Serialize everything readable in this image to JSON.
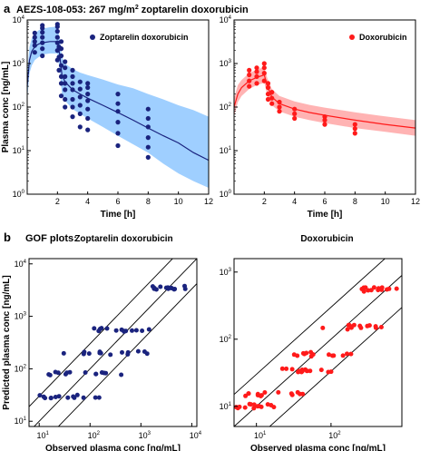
{
  "figure": {
    "panel_a_letter": "a",
    "panel_a_title": "AEZS-108-053: 267 mg/m",
    "panel_a_title_sup": "2",
    "panel_a_title_rest": " zoptarelin doxorubicin",
    "panel_b_letter": "b",
    "panel_b_label": "GOF plots:",
    "colors": {
      "zoptarelin": "#1a237e",
      "zoptarelin_band": "#7fbfff",
      "doxorubicin": "#ff1a1a",
      "doxorubicin_band": "#ff9a9a"
    }
  },
  "chart_data": [
    {
      "id": "pk-zoptarelin",
      "type": "scatter",
      "legend": "Zoptarelin doxorubicin",
      "xlabel": "Time [h]",
      "ylabel": "Plasma conc [ng/mL]",
      "xlim": [
        0,
        12
      ],
      "ylim_log10": [
        0,
        4
      ],
      "xticks": [
        2,
        4,
        6,
        8,
        10,
        12
      ],
      "yticks_exp": [
        0,
        1,
        2,
        3,
        4
      ],
      "curve": {
        "x": [
          0,
          0.15,
          0.3,
          0.5,
          0.75,
          1,
          1.5,
          2,
          2.15,
          2.3,
          2.5,
          3,
          3.5,
          4,
          5,
          6,
          7,
          8,
          9,
          10,
          11,
          12
        ],
        "median": [
          300,
          1200,
          1900,
          2400,
          2800,
          3000,
          3200,
          3200,
          1600,
          550,
          380,
          250,
          200,
          160,
          110,
          75,
          50,
          33,
          22,
          15,
          9,
          6
        ],
        "lower": [
          150,
          600,
          900,
          1200,
          1400,
          1600,
          1700,
          1700,
          700,
          200,
          140,
          90,
          70,
          55,
          35,
          22,
          14,
          9,
          5,
          3,
          2,
          1.4
        ],
        "upper": [
          600,
          2400,
          3800,
          4800,
          5800,
          6300,
          6800,
          7000,
          3800,
          1400,
          1000,
          750,
          620,
          540,
          430,
          330,
          270,
          200,
          150,
          110,
          85,
          60
        ]
      },
      "observations": [
        {
          "x": 0.5,
          "y": [
            1800,
            2600,
            3200,
            4000,
            5000
          ]
        },
        {
          "x": 1.0,
          "y": [
            1500,
            2200,
            3000,
            4000,
            5200,
            6500,
            7500
          ]
        },
        {
          "x": 2.0,
          "y": [
            1200,
            2000,
            3000,
            4000,
            5500,
            7000,
            8000
          ]
        },
        {
          "x": 2.1,
          "y": [
            700,
            1400,
            2400
          ]
        },
        {
          "x": 2.25,
          "y": [
            180,
            350,
            500,
            900,
            1500,
            2200,
            3200
          ]
        },
        {
          "x": 2.5,
          "y": [
            100,
            150,
            250,
            350,
            500,
            800,
            1100
          ]
        },
        {
          "x": 3.0,
          "y": [
            60,
            100,
            150,
            250,
            350,
            500,
            700
          ]
        },
        {
          "x": 3.5,
          "y": [
            35,
            70,
            110,
            170,
            260,
            380
          ]
        },
        {
          "x": 4.0,
          "y": [
            30,
            55,
            90,
            140,
            200,
            280,
            350
          ]
        },
        {
          "x": 6.0,
          "y": [
            13,
            25,
            45,
            80,
            120,
            200
          ]
        },
        {
          "x": 8.0,
          "y": [
            7,
            12,
            20,
            35,
            55,
            90
          ]
        }
      ]
    },
    {
      "id": "pk-doxorubicin",
      "type": "scatter",
      "legend": "Doxorubicin",
      "xlabel": "Time [h]",
      "ylabel": "",
      "xlim": [
        0,
        12
      ],
      "ylim_log10": [
        0,
        4
      ],
      "xticks": [
        2,
        4,
        6,
        8,
        10,
        12
      ],
      "yticks_exp": [
        0,
        1,
        2,
        3,
        4
      ],
      "curve": {
        "x": [
          0,
          0.25,
          0.5,
          1,
          1.5,
          2,
          2.2,
          2.5,
          3,
          4,
          5,
          6,
          8,
          10,
          12
        ],
        "median": [
          100,
          200,
          280,
          400,
          480,
          550,
          300,
          170,
          120,
          90,
          75,
          65,
          50,
          40,
          33
        ],
        "lower": [
          60,
          130,
          180,
          260,
          320,
          360,
          190,
          110,
          80,
          60,
          50,
          43,
          33,
          27,
          22
        ],
        "upper": [
          160,
          320,
          420,
          600,
          720,
          830,
          460,
          260,
          180,
          135,
          112,
          97,
          76,
          61,
          50
        ]
      },
      "observations": [
        {
          "x": 1.0,
          "y": [
            300,
            400,
            550,
            700
          ]
        },
        {
          "x": 1.5,
          "y": [
            350,
            500,
            650,
            800
          ]
        },
        {
          "x": 2.0,
          "y": [
            400,
            600,
            800,
            1000
          ]
        },
        {
          "x": 2.25,
          "y": [
            150,
            200,
            280,
            350
          ]
        },
        {
          "x": 2.5,
          "y": [
            120,
            160,
            220
          ]
        },
        {
          "x": 3.0,
          "y": [
            80,
            100,
            130
          ]
        },
        {
          "x": 4.0,
          "y": [
            55,
            70,
            90
          ]
        },
        {
          "x": 6.0,
          "y": [
            40,
            50,
            60
          ]
        },
        {
          "x": 8.0,
          "y": [
            25,
            32,
            40
          ]
        }
      ]
    },
    {
      "id": "gof-zoptarelin",
      "type": "scatter",
      "title": "Zoptarelin doxorubicin",
      "xlabel": "Observed plasma conc [ng/mL]",
      "ylabel": "Predicted plasma conc [ng/mL]",
      "xlim_log10": [
        0.8,
        4.1
      ],
      "ylim_log10": [
        0.9,
        4.1
      ],
      "xticks_exp": [
        1,
        2,
        3,
        4
      ],
      "yticks_exp": [
        1,
        2,
        3,
        4
      ],
      "identity_lines": [
        1,
        3,
        0.3333
      ],
      "band_predictions": [
        {
          "pred": 3500,
          "obs_range": [
            1500,
            8000
          ]
        },
        {
          "pred": 550,
          "obs_range": [
            90,
            3500
          ]
        },
        {
          "pred": 200,
          "obs_range": [
            25,
            1600
          ]
        },
        {
          "pred": 80,
          "obs_range": [
            15,
            600
          ]
        },
        {
          "pred": 30,
          "obs_range": [
            10,
            250
          ]
        }
      ]
    },
    {
      "id": "gof-doxorubicin",
      "type": "scatter",
      "title": "Doxorubicin",
      "xlabel": "Observed plasma conc [ng/mL]",
      "ylabel": "",
      "xlim_log10": [
        0.7,
        2.95
      ],
      "ylim_log10": [
        0.7,
        3.2
      ],
      "xticks_exp": [
        1,
        2
      ],
      "yticks_exp": [
        1,
        2,
        3
      ],
      "identity_lines": [
        1,
        3,
        0.3333
      ],
      "band_predictions": [
        {
          "pred": 550,
          "obs_range": [
            250,
            850
          ]
        },
        {
          "pred": 150,
          "obs_range": [
            70,
            500
          ]
        },
        {
          "pred": 60,
          "obs_range": [
            30,
            200
          ]
        },
        {
          "pred": 35,
          "obs_range": [
            20,
            120
          ]
        },
        {
          "pred": 15,
          "obs_range": [
            6,
            45
          ]
        },
        {
          "pred": 10,
          "obs_range": [
            5,
            20
          ]
        }
      ]
    }
  ]
}
